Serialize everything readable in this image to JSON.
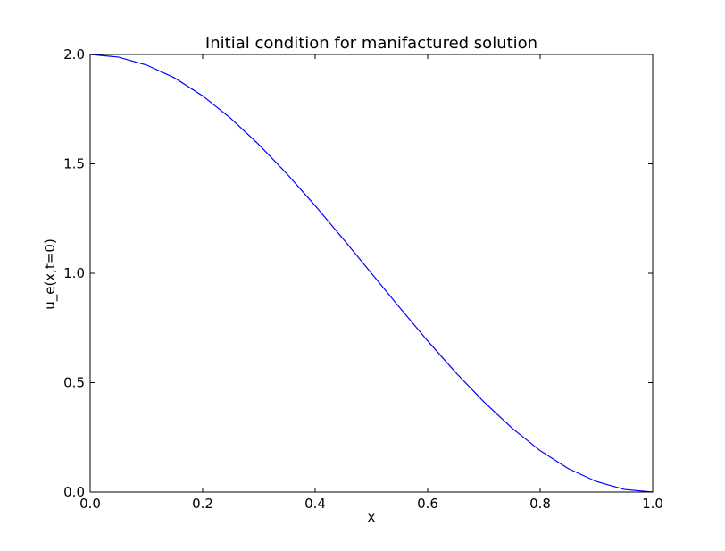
{
  "chart_data": {
    "type": "line",
    "title": "Initial condition for manifactured solution",
    "xlabel": "x",
    "ylabel": "u_e(x,t=0)",
    "xlim": [
      0.0,
      1.0
    ],
    "ylim": [
      0.0,
      2.0
    ],
    "xticks": [
      "0.0",
      "0.2",
      "0.4",
      "0.6",
      "0.8",
      "1.0"
    ],
    "yticks": [
      "0.0",
      "0.5",
      "1.0",
      "1.5",
      "2.0"
    ],
    "grid": false,
    "series": [
      {
        "name": "",
        "color": "#0000ff",
        "x": [
          0.0,
          0.05,
          0.1,
          0.15,
          0.2,
          0.25,
          0.3,
          0.35,
          0.4,
          0.45,
          0.5,
          0.55,
          0.6,
          0.65,
          0.7,
          0.75,
          0.8,
          0.85,
          0.9,
          0.95,
          1.0
        ],
        "values": [
          2.0,
          1.988,
          1.952,
          1.893,
          1.811,
          1.708,
          1.588,
          1.454,
          1.309,
          1.156,
          1.0,
          0.844,
          0.691,
          0.546,
          0.412,
          0.292,
          0.189,
          0.107,
          0.048,
          0.012,
          0.0
        ]
      }
    ]
  }
}
